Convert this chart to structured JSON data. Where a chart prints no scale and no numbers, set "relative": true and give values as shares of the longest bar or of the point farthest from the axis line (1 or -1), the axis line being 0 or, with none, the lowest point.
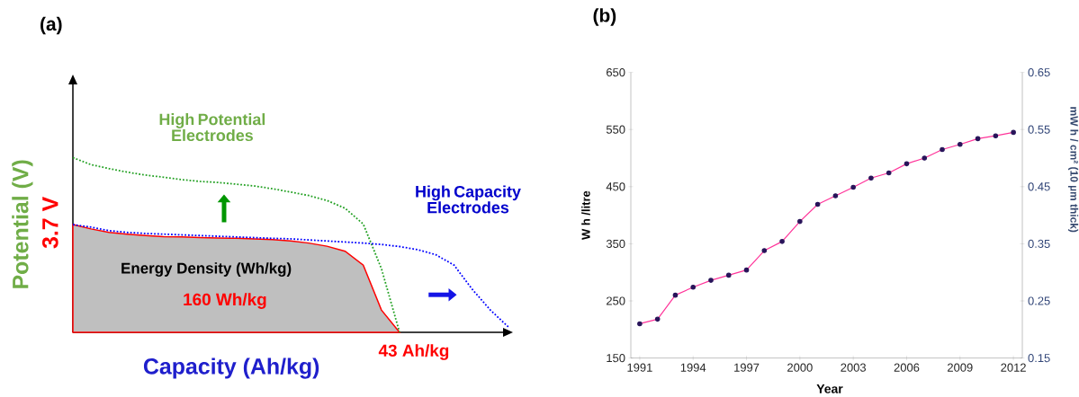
{
  "chart_data": [
    {
      "type": "line",
      "title": "(a)",
      "xlabel": "Capacity (Ah/kg)",
      "ylabel": "Potential (V)",
      "relative": true,
      "categories": [
        null,
        null,
        null,
        null,
        null,
        null,
        null,
        null,
        null,
        null,
        null,
        null,
        null,
        null,
        null,
        null,
        null,
        null,
        null,
        null,
        null,
        null,
        null,
        null,
        null
      ],
      "series": [
        {
          "type": "area",
          "color": "#ff0000",
          "values": [
            0.617,
            0.592,
            0.572,
            0.562,
            0.554,
            0.548,
            0.546,
            0.542,
            0.54,
            0.538,
            0.535,
            0.531,
            0.523,
            0.511,
            0.493,
            0.464,
            0.385,
            0.128,
            0,
            null,
            null,
            null,
            null,
            null,
            null
          ]
        },
        {
          "type": "line",
          "color": "#22a022",
          "line_style": "dotted",
          "values": [
            1,
            0.96,
            0.937,
            0.917,
            0.9,
            0.888,
            0.874,
            0.864,
            0.858,
            0.848,
            0.838,
            0.822,
            0.803,
            0.783,
            0.755,
            0.71,
            0.62,
            0.365,
            0,
            null,
            null,
            null,
            null,
            null,
            null
          ]
        },
        {
          "type": "line",
          "color": "#0000ff",
          "line_style": "dotted",
          "values": [
            0.617,
            0.602,
            0.582,
            0.572,
            0.566,
            0.562,
            0.558,
            0.554,
            0.55,
            0.546,
            0.542,
            0.538,
            0.535,
            0.529,
            0.523,
            0.517,
            0.511,
            0.503,
            0.491,
            0.473,
            0.444,
            0.385,
            0.247,
            0.128,
            0.03
          ]
        }
      ],
      "annotations": [
        "High Potential Electrodes",
        "High Capacity Electrodes",
        "Energy Density (Wh/kg)",
        "160 Wh/kg",
        "43 Ah/kg",
        "3.7 V"
      ]
    },
    {
      "type": "line",
      "title": "(b)",
      "xlabel": "Year",
      "ylabel": "W h /litre",
      "y2label": "mW h / cm² (10 µm thick)",
      "x": [
        1991,
        1992,
        1993,
        1994,
        1995,
        1996,
        1997,
        1998,
        1999,
        2000,
        2001,
        2002,
        2003,
        2004,
        2005,
        2006,
        2007,
        2008,
        2009,
        2010,
        2011,
        2012
      ],
      "xlim": [
        1990.5,
        2012.5
      ],
      "xticks": [
        1991,
        1994,
        1997,
        2000,
        2003,
        2006,
        2009,
        2012
      ],
      "ylim": [
        150,
        650
      ],
      "yticks": [
        150,
        250,
        350,
        450,
        550,
        650
      ],
      "y2lim": [
        0.15,
        0.65
      ],
      "y2ticks": [
        0.15,
        0.25,
        0.35,
        0.45,
        0.55,
        0.65
      ],
      "marker": "circle",
      "series": [
        {
          "color": "#ff3399",
          "values": [
            210,
            218,
            260,
            274,
            286,
            295,
            304,
            338,
            354,
            389,
            419,
            434,
            449,
            465,
            474,
            490,
            500,
            515,
            524,
            534,
            539,
            545
          ]
        }
      ]
    }
  ]
}
